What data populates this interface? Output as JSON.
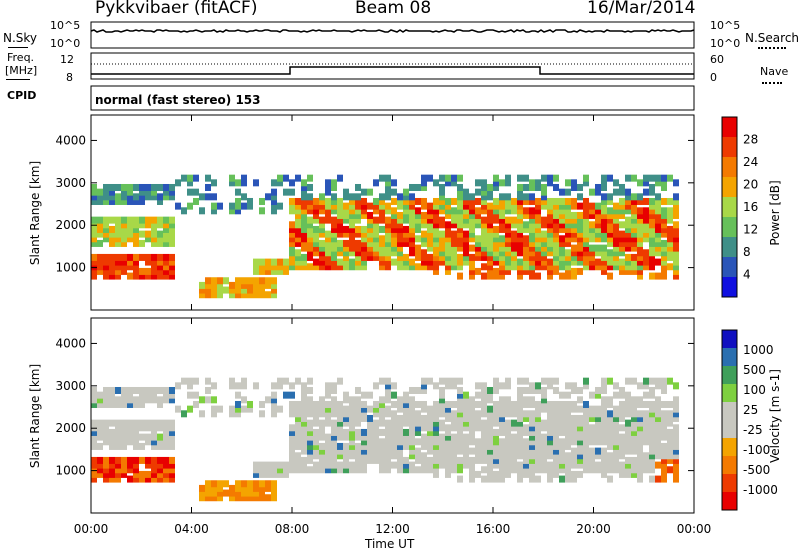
{
  "header": {
    "station": "Pykkvibaer (fitACF)",
    "beam": "Beam 08",
    "date": "16/Mar/2014"
  },
  "top_panels": {
    "nsky_label": "N.Sky",
    "nsearch_label": "N.Search",
    "nsky_ticks": [
      "10^5",
      "10^0"
    ],
    "nsearch_ticks": [
      "10^5",
      "10^0"
    ],
    "freq_label_1": "Freq.",
    "freq_label_2": "[MHz]",
    "freq_ticks": [
      "12",
      "8"
    ],
    "nave_label": "Nave",
    "nave_ticks": [
      "60",
      "0"
    ],
    "cpid_label": "CPID",
    "cpid_value": "normal (fast stereo) 153"
  },
  "colors": {
    "power_scale": [
      "#1010e0",
      "#2a55b8",
      "#3f8f88",
      "#66c05a",
      "#a8d848",
      "#f4a400",
      "#f47a00",
      "#ee3a00",
      "#e80000"
    ],
    "velocity_scale": [
      "#e80000",
      "#ee3a00",
      "#f47a00",
      "#f4a400",
      "#c8c8c0",
      "#c8c8c0",
      "#7ed040",
      "#3f9f5a",
      "#2a6fb0",
      "#1010c0"
    ]
  },
  "chart_data": [
    {
      "type": "heatmap",
      "title": "Power",
      "xlabel": "Time UT",
      "ylabel": "Slant Range [km]",
      "x_range": [
        "00:00",
        "24:00"
      ],
      "ylim": [
        0,
        4600
      ],
      "x_ticks": [
        "00:00",
        "04:00",
        "08:00",
        "12:00",
        "16:00",
        "20:00",
        "00:00"
      ],
      "y_ticks": [
        "1000",
        "2000",
        "3000",
        "4000"
      ],
      "colorbar_label": "Power [dB]",
      "colorbar_ticks": [
        "4",
        "8",
        "12",
        "16",
        "20",
        "24",
        "28"
      ],
      "colorbar_range": [
        0,
        30
      ]
    },
    {
      "type": "heatmap",
      "title": "Velocity",
      "xlabel": "Time UT",
      "ylabel": "Slant Range [km]",
      "x_range": [
        "00:00",
        "24:00"
      ],
      "ylim": [
        0,
        4600
      ],
      "x_ticks": [
        "00:00",
        "04:00",
        "08:00",
        "12:00",
        "16:00",
        "20:00",
        "00:00"
      ],
      "y_ticks": [
        "1000",
        "2000",
        "3000",
        "4000"
      ],
      "colorbar_label": "Velocity [m s-1]",
      "colorbar_ticks": [
        "1000",
        "500",
        "100",
        "25",
        "-25",
        "-100",
        "-500",
        "-1000"
      ]
    }
  ]
}
